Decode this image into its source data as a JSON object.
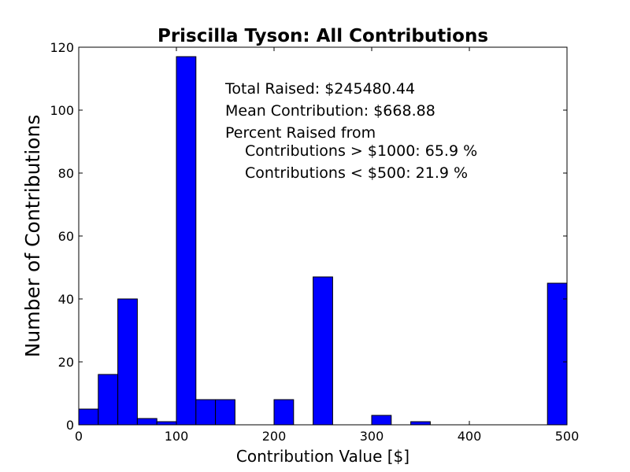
{
  "chart_data": {
    "type": "bar",
    "title": "Priscilla Tyson: All Contributions",
    "xlabel": "Contribution Value [$]",
    "ylabel": "Number of Contributions",
    "xlim": [
      0,
      500
    ],
    "ylim": [
      0,
      120
    ],
    "xticks": [
      "0",
      "100",
      "200",
      "300",
      "400",
      "500"
    ],
    "yticks": [
      "0",
      "20",
      "40",
      "60",
      "80",
      "100",
      "120"
    ],
    "bin_width": 20,
    "bins": [
      {
        "x0": 0,
        "value": 5
      },
      {
        "x0": 20,
        "value": 16
      },
      {
        "x0": 40,
        "value": 40
      },
      {
        "x0": 60,
        "value": 2
      },
      {
        "x0": 80,
        "value": 1
      },
      {
        "x0": 100,
        "value": 117
      },
      {
        "x0": 120,
        "value": 8
      },
      {
        "x0": 140,
        "value": 8
      },
      {
        "x0": 160,
        "value": 0
      },
      {
        "x0": 180,
        "value": 0
      },
      {
        "x0": 200,
        "value": 8
      },
      {
        "x0": 220,
        "value": 0
      },
      {
        "x0": 240,
        "value": 47
      },
      {
        "x0": 260,
        "value": 0
      },
      {
        "x0": 280,
        "value": 0
      },
      {
        "x0": 300,
        "value": 3
      },
      {
        "x0": 320,
        "value": 0
      },
      {
        "x0": 340,
        "value": 1
      },
      {
        "x0": 360,
        "value": 0
      },
      {
        "x0": 380,
        "value": 0
      },
      {
        "x0": 400,
        "value": 0
      },
      {
        "x0": 420,
        "value": 0
      },
      {
        "x0": 440,
        "value": 0
      },
      {
        "x0": 460,
        "value": 0
      },
      {
        "x0": 480,
        "value": 45
      }
    ],
    "bar_color": "#0000ff",
    "grid": false,
    "annotations": [
      "Total Raised: $245480.44",
      "Mean Contribution: $668.88",
      "Percent Raised from",
      "Contributions > $1000: 65.9 %",
      "Contributions < $500: 21.9 %"
    ]
  }
}
